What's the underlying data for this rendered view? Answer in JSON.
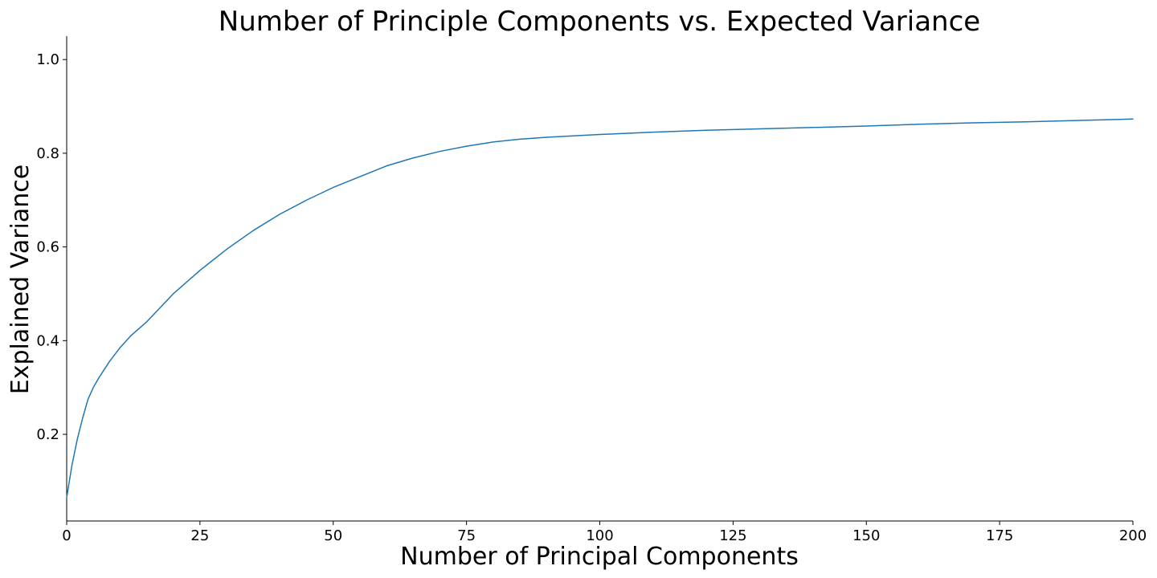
{
  "chart_data": {
    "type": "line",
    "title": "Number of Principle Components vs. Expected Variance",
    "xlabel": "Number of Principal Components",
    "ylabel": "Explained Variance",
    "xlim": [
      0,
      200
    ],
    "ylim": [
      0.015,
      1.05
    ],
    "xticks": [
      0,
      25,
      50,
      75,
      100,
      125,
      150,
      175,
      200
    ],
    "xtick_labels": [
      "0",
      "25",
      "50",
      "75",
      "100",
      "125",
      "150",
      "175",
      "200"
    ],
    "yticks": [
      0.2,
      0.4,
      0.6,
      0.8,
      1.0
    ],
    "ytick_labels": [
      "0.2",
      "0.4",
      "0.6",
      "0.8",
      "1.0"
    ],
    "grid": false,
    "series": [
      {
        "color": "#1f77b4",
        "x": [
          0,
          1,
          2,
          3,
          4,
          5,
          6,
          8,
          10,
          12,
          15,
          20,
          25,
          30,
          35,
          40,
          45,
          50,
          55,
          60,
          65,
          70,
          75,
          80,
          85,
          90,
          100,
          110,
          120,
          130,
          140,
          150,
          160,
          170,
          180,
          190,
          200
        ],
        "y": [
          0.065,
          0.135,
          0.19,
          0.235,
          0.275,
          0.3,
          0.32,
          0.355,
          0.385,
          0.41,
          0.44,
          0.5,
          0.55,
          0.595,
          0.635,
          0.67,
          0.7,
          0.727,
          0.75,
          0.773,
          0.79,
          0.804,
          0.815,
          0.824,
          0.83,
          0.834,
          0.84,
          0.845,
          0.849,
          0.852,
          0.855,
          0.858,
          0.862,
          0.865,
          0.867,
          0.87,
          0.873
        ]
      }
    ]
  }
}
